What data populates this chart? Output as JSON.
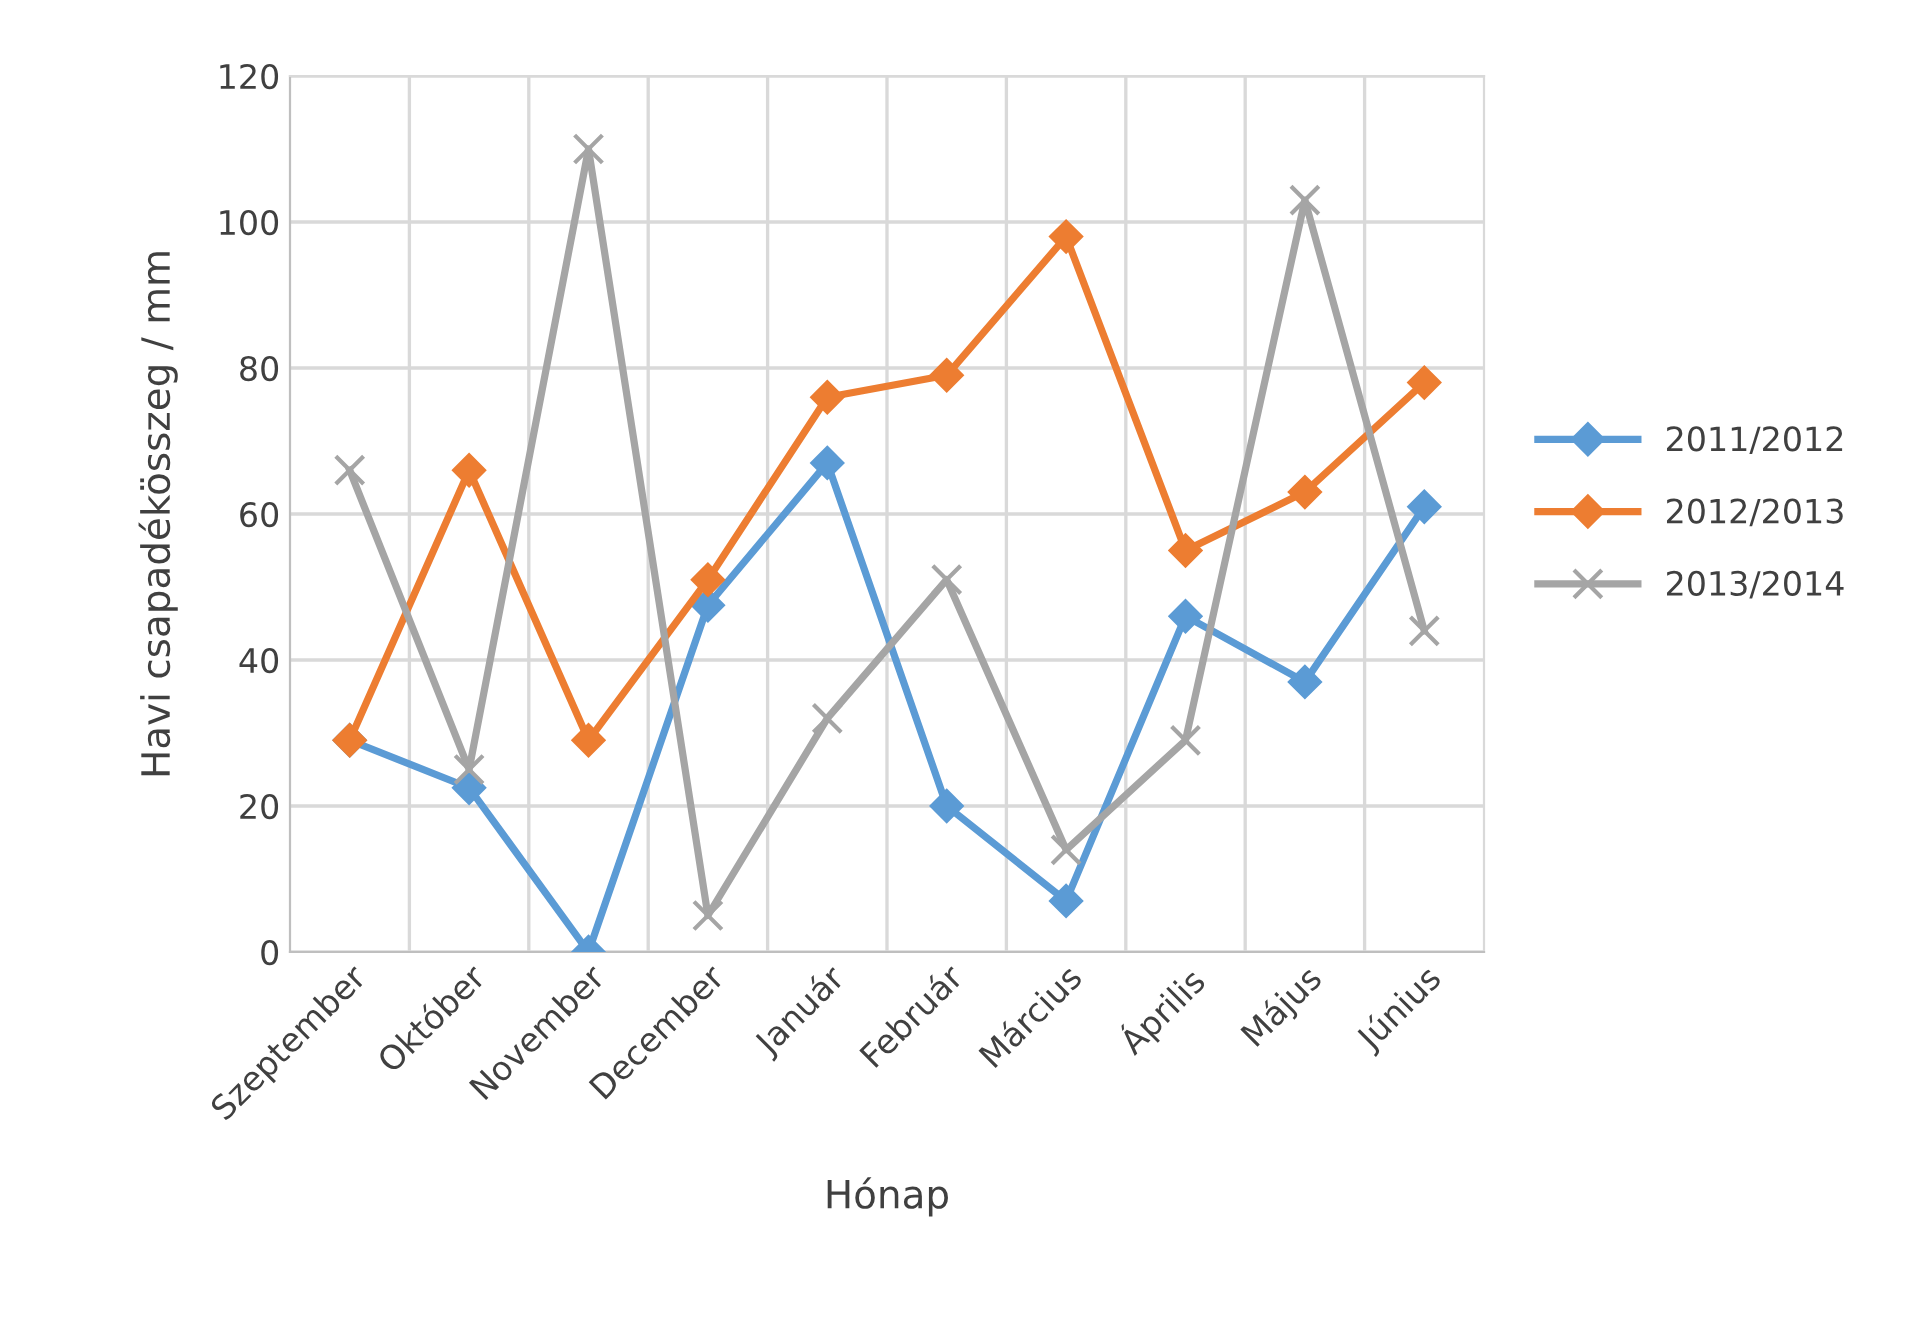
{
  "chart_data": {
    "type": "line",
    "xlabel": "Hónap",
    "ylabel": "Havi csapadékösszeg / mm",
    "categories": [
      "Szeptember",
      "Október",
      "November",
      "December",
      "Január",
      "Február",
      "Március",
      "Április",
      "Május",
      "Június"
    ],
    "series": [
      {
        "name": "2011/2012",
        "color": "#5b9bd5",
        "marker": "diamond",
        "values": [
          29,
          22.5,
          0,
          47.5,
          67,
          20,
          7,
          46,
          37,
          61
        ]
      },
      {
        "name": "2012/2013",
        "color": "#ed7d31",
        "marker": "diamond",
        "values": [
          29,
          66,
          29,
          51,
          76,
          79,
          98,
          55,
          63,
          78
        ]
      },
      {
        "name": "2013/2014",
        "color": "#a5a5a5",
        "marker": "cross",
        "values": [
          66,
          25,
          110,
          5,
          32,
          51,
          14,
          29,
          103,
          44
        ]
      }
    ],
    "ylim": [
      0,
      120
    ],
    "yticks": [
      0,
      20,
      40,
      60,
      80,
      100,
      120
    ],
    "grid": true,
    "legend": "right"
  }
}
